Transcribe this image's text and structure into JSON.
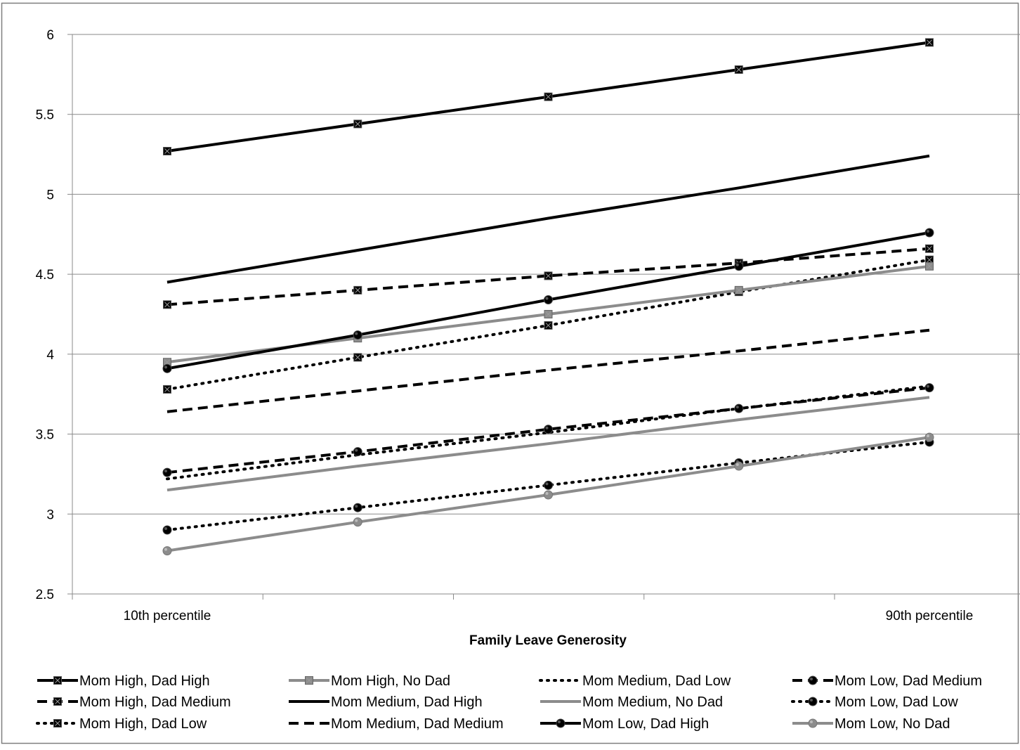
{
  "chart_data": {
    "type": "line",
    "title": "",
    "xlabel": "Family Leave Generosity",
    "ylabel": "",
    "ylim": [
      2.5,
      6
    ],
    "yticks": [
      "2.5",
      "3",
      "3.5",
      "4",
      "4.5",
      "5",
      "5.5",
      "6"
    ],
    "categories": [
      "10th percentile",
      "",
      "",
      "",
      "90th percentile"
    ],
    "grid": true,
    "legend_position": "bottom",
    "colors": {
      "black": "#000000",
      "gray": "#8c8c8c",
      "gridline": "#8a8a8a",
      "border": "#7f7f7f"
    },
    "series": [
      {
        "name": "Mom High, Dad High",
        "color": "#000000",
        "dash": "solid",
        "marker": "square",
        "values": [
          5.27,
          5.44,
          5.61,
          5.78,
          5.95
        ]
      },
      {
        "name": "Mom High, Dad Medium",
        "color": "#000000",
        "dash": "dashed",
        "marker": "square",
        "values": [
          4.31,
          4.4,
          4.49,
          4.57,
          4.66
        ]
      },
      {
        "name": "Mom High, Dad Low",
        "color": "#000000",
        "dash": "dotted",
        "marker": "square",
        "values": [
          3.78,
          3.98,
          4.18,
          4.39,
          4.59
        ]
      },
      {
        "name": "Mom High, No Dad",
        "color": "#8c8c8c",
        "dash": "solid",
        "marker": "square",
        "values": [
          3.95,
          4.1,
          4.25,
          4.4,
          4.55
        ]
      },
      {
        "name": "Mom Medium, Dad High",
        "color": "#000000",
        "dash": "solid",
        "marker": "none",
        "values": [
          4.45,
          4.65,
          4.85,
          5.04,
          5.24
        ]
      },
      {
        "name": "Mom Medium, Dad Medium",
        "color": "#000000",
        "dash": "dashed",
        "marker": "none",
        "values": [
          3.64,
          3.77,
          3.9,
          4.02,
          4.15
        ]
      },
      {
        "name": "Mom Medium, Dad Low",
        "color": "#000000",
        "dash": "dotted",
        "marker": "none",
        "values": [
          3.22,
          3.37,
          3.51,
          3.66,
          3.8
        ]
      },
      {
        "name": "Mom Medium, No Dad",
        "color": "#8c8c8c",
        "dash": "solid",
        "marker": "none",
        "values": [
          3.15,
          3.3,
          3.44,
          3.59,
          3.73
        ]
      },
      {
        "name": "Mom Low, Dad High",
        "color": "#000000",
        "dash": "solid",
        "marker": "circle",
        "values": [
          3.91,
          4.12,
          4.34,
          4.55,
          4.76
        ]
      },
      {
        "name": "Mom Low, Dad Medium",
        "color": "#000000",
        "dash": "dashed",
        "marker": "circle",
        "values": [
          3.26,
          3.39,
          3.53,
          3.66,
          3.79
        ]
      },
      {
        "name": "Mom Low, Dad Low",
        "color": "#000000",
        "dash": "dotted",
        "marker": "circle",
        "values": [
          2.9,
          3.04,
          3.18,
          3.32,
          3.45
        ]
      },
      {
        "name": "Mom Low, No Dad",
        "color": "#8c8c8c",
        "dash": "solid",
        "marker": "circle",
        "values": [
          2.77,
          2.95,
          3.12,
          3.3,
          3.48
        ]
      }
    ]
  }
}
